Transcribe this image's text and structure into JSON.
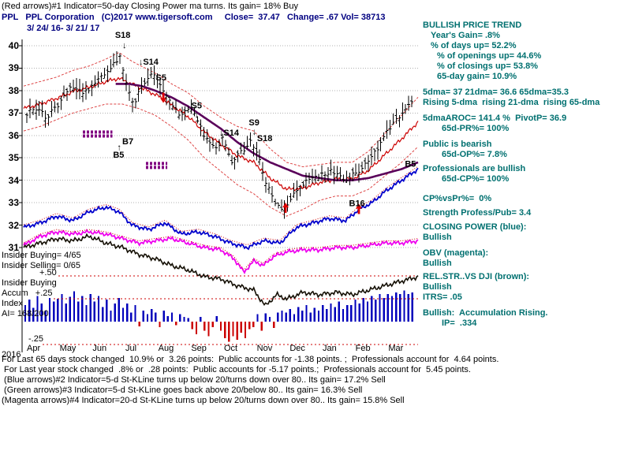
{
  "colors": {
    "navy": "#000080",
    "teal": "#007070",
    "black": "#000000"
  },
  "header": {
    "line1": "(Red arrows)#1 Indicator=50-day Closing Power ma turns. Its gain= 18% Buy",
    "line2": "PPL   PPL Corporation   (C)2017 www.tigersoft.com     Close=  37.47   Change= .67 Vol= 38713",
    "date_range": "3/ 24/ 16- 3/ 21/ 17"
  },
  "insider": {
    "buying": "Insider Buying= 4/65",
    "selling": "Insider Selling= 0/65",
    "scale_plus50": "+.50",
    "label_line1": "Insider Buying",
    "label_line2": "Accum   +.25",
    "label_line3": "Index",
    "ai": "AI= 168/200",
    "scale_minus25": "-.25"
  },
  "year_label": "2016",
  "right_panel": {
    "color": "#007070",
    "lines": [
      {
        "text": "BULLISH PRICE TREND",
        "indent": 0,
        "gap": 0
      },
      {
        "text": "Year's Gain= .8%",
        "indent": 10,
        "gap": 0
      },
      {
        "text": "% of days up= 52.2%",
        "indent": 10,
        "gap": 0
      },
      {
        "text": "% of openings up= 44.6%",
        "indent": 18,
        "gap": 0
      },
      {
        "text": "% of closings up= 53.8%",
        "indent": 18,
        "gap": 0
      },
      {
        "text": "65-day gain= 10.9%",
        "indent": 18,
        "gap": 0
      },
      {
        "text": "5dma= 37 21dma= 36.6 65dma=35.3",
        "indent": 0,
        "gap": 7
      },
      {
        "text": "Rising 5-dma  rising 21-dma  rising 65-dma",
        "indent": 0,
        "gap": 0
      },
      {
        "text": "5dmaAROC= 141.4 %  PivotP= 36.9",
        "indent": 0,
        "gap": 7
      },
      {
        "text": "65d-PR%= 100%",
        "indent": 24,
        "gap": 0
      },
      {
        "text": "Public is bearish",
        "indent": 0,
        "gap": 7
      },
      {
        "text": "65d-OP%= 7.8%",
        "indent": 24,
        "gap": 0
      },
      {
        "text": "Professionals are bullish",
        "indent": 0,
        "gap": 5
      },
      {
        "text": "65d-CP%= 100%",
        "indent": 24,
        "gap": 0
      },
      {
        "text": "CP%vsPr%=  0%",
        "indent": 0,
        "gap": 12
      },
      {
        "text": "Strength Profess/Pub= 3.4",
        "indent": 0,
        "gap": 5
      },
      {
        "text": "CLOSING POWER (blue):",
        "indent": 0,
        "gap": 5
      },
      {
        "text": "Bullish",
        "indent": 0,
        "gap": 0
      },
      {
        "text": "OBV (magenta):",
        "indent": 0,
        "gap": 7
      },
      {
        "text": "Bullish",
        "indent": 0,
        "gap": 0
      },
      {
        "text": "REL.STR..VS DJI (brown):",
        "indent": 0,
        "gap": 4
      },
      {
        "text": "Bullish",
        "indent": 0,
        "gap": 0
      },
      {
        "text": "ITRS= .05",
        "indent": 0,
        "gap": 0
      },
      {
        "text": "Bullish:  Accumulation Rising.",
        "indent": 0,
        "gap": 7
      },
      {
        "text": "IP=  .334",
        "indent": 24,
        "gap": 0
      }
    ]
  },
  "footer": {
    "lines": [
      "For Last 65 days stock changed  10.9% or  3.26 points:  Public accounts for -1.38 points. ;  Professionals account for  4.64 points.",
      " For Last year stock changed  .8% or  .28 points:  Public accounts for -5.17 points.;  Professionals account for  5.45 points.",
      " (Blue arrows)#2 Indicator=5-d St-KLine turns up below 20/turns down over 80.. Its gain= 17.2% Sell",
      " (Green arrows)#3 Indicator=5-d St-KLine goes back above 20/below 80.. Its gain= 16.3% Sell",
      "(Magenta arrows)#4 Indicator=20-d St-KLine turns up below 20/turns down over 80.. Its gain= 15.8% Sell"
    ]
  },
  "chart_data": {
    "type": "ohlc+lines+histogram",
    "title": "PPL Corporation daily bars 3/24/16 - 3/21/17 with Closing Power, OBV, Rel.Str. and Accumulation Index",
    "x_axis": {
      "months": [
        "Apr",
        "May",
        "Jun",
        "Jul",
        "Aug",
        "Sep",
        "Oct",
        "Nov",
        "Dec",
        "Jan",
        "Feb",
        "Mar"
      ],
      "domain_months": [
        0,
        12
      ]
    },
    "price_axis": {
      "min": 31,
      "max": 40,
      "ticks": [
        40,
        39,
        38,
        37,
        36,
        35,
        34,
        33,
        32,
        31
      ]
    },
    "accum_axis": {
      "ticks": [
        0.5,
        0.25,
        -0.25
      ],
      "labels": [
        "+.50",
        "+.25",
        "-.25"
      ]
    },
    "close_anchors": [
      [
        0,
        37.0
      ],
      [
        0.3,
        37.2
      ],
      [
        0.6,
        36.8
      ],
      [
        1.0,
        37.4
      ],
      [
        1.4,
        38.2
      ],
      [
        1.8,
        37.9
      ],
      [
        2.2,
        38.5
      ],
      [
        2.6,
        39.0
      ],
      [
        2.9,
        39.5
      ],
      [
        3.1,
        38.2
      ],
      [
        3.3,
        37.4
      ],
      [
        3.6,
        38.3
      ],
      [
        3.9,
        38.8
      ],
      [
        4.1,
        38.4
      ],
      [
        4.4,
        37.6
      ],
      [
        4.7,
        36.9
      ],
      [
        5.0,
        37.2
      ],
      [
        5.2,
        37.0
      ],
      [
        5.5,
        35.9
      ],
      [
        5.8,
        35.4
      ],
      [
        6.1,
        35.9
      ],
      [
        6.3,
        34.8
      ],
      [
        6.6,
        35.2
      ],
      [
        6.9,
        35.7
      ],
      [
        7.1,
        35.3
      ],
      [
        7.4,
        33.9
      ],
      [
        7.7,
        32.9
      ],
      [
        7.9,
        32.6
      ],
      [
        8.2,
        33.3
      ],
      [
        8.6,
        33.9
      ],
      [
        9.0,
        34.2
      ],
      [
        9.4,
        34.4
      ],
      [
        9.8,
        34.0
      ],
      [
        10.2,
        34.3
      ],
      [
        10.6,
        34.9
      ],
      [
        11.0,
        35.8
      ],
      [
        11.3,
        36.5
      ],
      [
        11.6,
        37.0
      ],
      [
        11.9,
        37.4
      ],
      [
        12,
        37.45
      ]
    ],
    "bar_count": 125,
    "series": {
      "ma50_purple": [
        [
          2.8,
          38.3
        ],
        [
          3.2,
          38.3
        ],
        [
          3.6,
          38.2
        ],
        [
          4,
          38.0
        ],
        [
          4.5,
          37.7
        ],
        [
          5,
          37.3
        ],
        [
          5.5,
          36.8
        ],
        [
          6,
          36.3
        ],
        [
          6.5,
          35.7
        ],
        [
          7,
          35.2
        ],
        [
          7.5,
          34.8
        ],
        [
          8,
          34.5
        ],
        [
          8.5,
          34.2
        ],
        [
          9,
          34.1
        ],
        [
          9.5,
          34.0
        ],
        [
          10,
          34.0
        ],
        [
          10.5,
          34.1
        ],
        [
          11,
          34.3
        ],
        [
          11.5,
          34.5
        ],
        [
          12,
          34.8
        ]
      ],
      "band_upper_red": [
        [
          0,
          38.2
        ],
        [
          0.5,
          38.4
        ],
        [
          1,
          38.6
        ],
        [
          1.5,
          38.9
        ],
        [
          2,
          39.1
        ],
        [
          2.5,
          39.4
        ],
        [
          2.9,
          39.7
        ],
        [
          3.3,
          39.3
        ],
        [
          3.7,
          39.0
        ],
        [
          4.1,
          38.7
        ],
        [
          4.5,
          38.3
        ],
        [
          5,
          37.9
        ],
        [
          5.5,
          37.3
        ],
        [
          6,
          36.8
        ],
        [
          6.5,
          36.4
        ],
        [
          7,
          36.2
        ],
        [
          7.5,
          35.4
        ],
        [
          8,
          34.8
        ],
        [
          8.5,
          34.6
        ],
        [
          9,
          34.7
        ],
        [
          9.5,
          34.8
        ],
        [
          10,
          34.8
        ],
        [
          10.5,
          35.3
        ],
        [
          11,
          36.1
        ],
        [
          11.5,
          36.9
        ],
        [
          12,
          37.7
        ]
      ],
      "band_lower_red": [
        [
          0,
          36.2
        ],
        [
          0.5,
          36.4
        ],
        [
          1,
          36.7
        ],
        [
          1.5,
          37.0
        ],
        [
          2,
          37.2
        ],
        [
          2.5,
          37.4
        ],
        [
          3,
          37.4
        ],
        [
          3.5,
          37.2
        ],
        [
          4,
          36.9
        ],
        [
          4.5,
          36.4
        ],
        [
          5,
          35.8
        ],
        [
          5.5,
          35.0
        ],
        [
          6,
          34.4
        ],
        [
          6.5,
          33.8
        ],
        [
          7,
          33.4
        ],
        [
          7.5,
          32.8
        ],
        [
          8,
          32.4
        ],
        [
          8.5,
          32.7
        ],
        [
          9,
          33.1
        ],
        [
          9.5,
          33.3
        ],
        [
          10,
          33.3
        ],
        [
          10.5,
          33.6
        ],
        [
          11,
          34.2
        ],
        [
          11.5,
          34.8
        ],
        [
          12,
          35.5
        ]
      ],
      "closing_power_blue": [
        [
          0,
          31.9
        ],
        [
          0.5,
          32.1
        ],
        [
          1,
          32.4
        ],
        [
          1.5,
          32.2
        ],
        [
          2,
          32.6
        ],
        [
          2.5,
          32.8
        ],
        [
          2.9,
          32.6
        ],
        [
          3.3,
          32.0
        ],
        [
          3.8,
          31.8
        ],
        [
          4.3,
          32.1
        ],
        [
          4.8,
          31.6
        ],
        [
          5.3,
          31.7
        ],
        [
          5.8,
          31.5
        ],
        [
          6.3,
          31.2
        ],
        [
          6.8,
          31.0
        ],
        [
          7.3,
          31.3
        ],
        [
          7.8,
          31.2
        ],
        [
          8.3,
          31.9
        ],
        [
          8.8,
          32.1
        ],
        [
          9.3,
          32.3
        ],
        [
          9.8,
          32.2
        ],
        [
          10.2,
          32.7
        ],
        [
          10.6,
          33.0
        ],
        [
          11,
          33.5
        ],
        [
          11.4,
          33.9
        ],
        [
          11.7,
          34.2
        ],
        [
          12,
          34.5
        ]
      ],
      "obv_magenta": [
        [
          0,
          31.1
        ],
        [
          0.5,
          31.5
        ],
        [
          1,
          31.7
        ],
        [
          1.5,
          31.6
        ],
        [
          2,
          31.7
        ],
        [
          2.5,
          31.6
        ],
        [
          3,
          31.4
        ],
        [
          3.5,
          31.2
        ],
        [
          4,
          31.3
        ],
        [
          4.5,
          31.4
        ],
        [
          5,
          31.2
        ],
        [
          5.5,
          31.0
        ],
        [
          6,
          30.9
        ],
        [
          6.4,
          30.5
        ],
        [
          6.7,
          29.9
        ],
        [
          7,
          30.4
        ],
        [
          7.3,
          30.2
        ],
        [
          7.6,
          30.6
        ],
        [
          8,
          30.8
        ],
        [
          8.5,
          30.9
        ],
        [
          9,
          30.9
        ],
        [
          9.5,
          31.0
        ],
        [
          10,
          31.0
        ],
        [
          10.5,
          31.1
        ],
        [
          11,
          31.2
        ],
        [
          11.5,
          31.2
        ],
        [
          12,
          31.3
        ]
      ],
      "rel_str_black": [
        [
          0,
          31.0
        ],
        [
          0.5,
          31.2
        ],
        [
          1,
          31.4
        ],
        [
          1.5,
          31.3
        ],
        [
          2,
          31.5
        ],
        [
          2.5,
          31.2
        ],
        [
          3,
          31.0
        ],
        [
          3.5,
          30.7
        ],
        [
          4,
          30.5
        ],
        [
          4.5,
          30.2
        ],
        [
          5,
          30.0
        ],
        [
          5.5,
          29.7
        ],
        [
          6,
          29.6
        ],
        [
          6.5,
          29.3
        ],
        [
          7,
          29.1
        ],
        [
          7.35,
          28.4
        ],
        [
          7.7,
          28.9
        ],
        [
          8,
          28.7
        ],
        [
          8.5,
          29.0
        ],
        [
          9,
          28.9
        ],
        [
          9.5,
          29.0
        ],
        [
          10,
          28.9
        ],
        [
          10.5,
          29.1
        ],
        [
          11,
          29.3
        ],
        [
          11.5,
          29.5
        ],
        [
          12,
          29.7
        ]
      ]
    },
    "histogram": [
      0.18,
      0.24,
      0.15,
      0.28,
      0.2,
      0.12,
      0.26,
      0.22,
      0.25,
      0.3,
      0.2,
      0.27,
      0.33,
      0.22,
      0.28,
      0.18,
      0.3,
      0.22,
      0.28,
      0.16,
      0.24,
      0.12,
      0.2,
      0.26,
      0.15,
      0.2,
      0.1,
      0.18,
      -0.05,
      0.12,
      0.08,
      0.14,
      0.1,
      -0.06,
      0.12,
      0.06,
      0.1,
      -0.04,
      0.08,
      0.05,
      0.04,
      -0.08,
      -0.14,
      0.05,
      -0.1,
      -0.16,
      -0.06,
      0.06,
      -0.1,
      -0.18,
      -0.22,
      -0.16,
      -0.2,
      -0.12,
      -0.18,
      -0.08,
      -0.06,
      0.08,
      -0.1,
      0.09,
      0.05,
      -0.07,
      0.1,
      0.12,
      0.1,
      0.14,
      0.08,
      0.16,
      0.12,
      0.18,
      0.1,
      0.15,
      0.12,
      0.18,
      0.14,
      0.2,
      0.16,
      0.22,
      0.14,
      0.18,
      0.18,
      0.24,
      0.2,
      0.26,
      0.22,
      0.28,
      0.24,
      0.3,
      0.26,
      0.3,
      0.28,
      0.32,
      0.3,
      0.34,
      0.3,
      0.32
    ],
    "annotations": [
      {
        "t": "S18",
        "m": 2.78,
        "p": 40.35
      },
      {
        "t": "↓",
        "m": 3.0,
        "p": 39.9
      },
      {
        "t": "↓S14",
        "m": 3.5,
        "p": 39.15
      },
      {
        "t": "S5",
        "m": 4.02,
        "p": 38.45
      },
      {
        "t": "S5",
        "m": 5.1,
        "p": 37.2
      },
      {
        "t": "↓",
        "m": 5.2,
        "p": 36.8
      },
      {
        "t": "↓S14",
        "m": 5.95,
        "p": 36.0
      },
      {
        "t": "S9",
        "m": 6.85,
        "p": 36.45
      },
      {
        "t": "↓",
        "m": 6.95,
        "p": 36.05
      },
      {
        "t": "S18",
        "m": 7.1,
        "p": 35.75
      },
      {
        "t": "B7",
        "m": 3.0,
        "p": 35.6
      },
      {
        "t": "↑",
        "m": 2.84,
        "p": 35.35
      },
      {
        "t": "B5",
        "m": 2.72,
        "p": 35.0
      },
      {
        "t": "B16",
        "m": 9.9,
        "p": 32.85
      },
      {
        "t": "B5",
        "m": 11.6,
        "p": 34.6
      }
    ],
    "red_arrows": [
      {
        "dir": "down",
        "m": 4.25,
        "p": 37.45
      },
      {
        "dir": "up",
        "m": 7.97,
        "p": 33.0
      },
      {
        "dir": "up",
        "m": 10.2,
        "p": 32.95
      }
    ],
    "zones": [
      {
        "m0": 1.8,
        "m1": 2.7,
        "p": 36.15
      },
      {
        "m0": 3.72,
        "m1": 4.37,
        "p": 34.75
      }
    ],
    "colors": {
      "bars": "#000000",
      "closing_power": "#0000cc",
      "obv": "#ee00ee",
      "rel_str": "#151005",
      "ma50": "#5a005a",
      "bands": "#dd4444",
      "midline": "#cc0000",
      "hist_pos": "#0000bb",
      "hist_neg": "#cc0000",
      "grid": "#b0b0b0",
      "accum_ref": "#cc0000",
      "arrow": "#dd0000",
      "zone": "#800080",
      "axis": "#000000"
    }
  }
}
